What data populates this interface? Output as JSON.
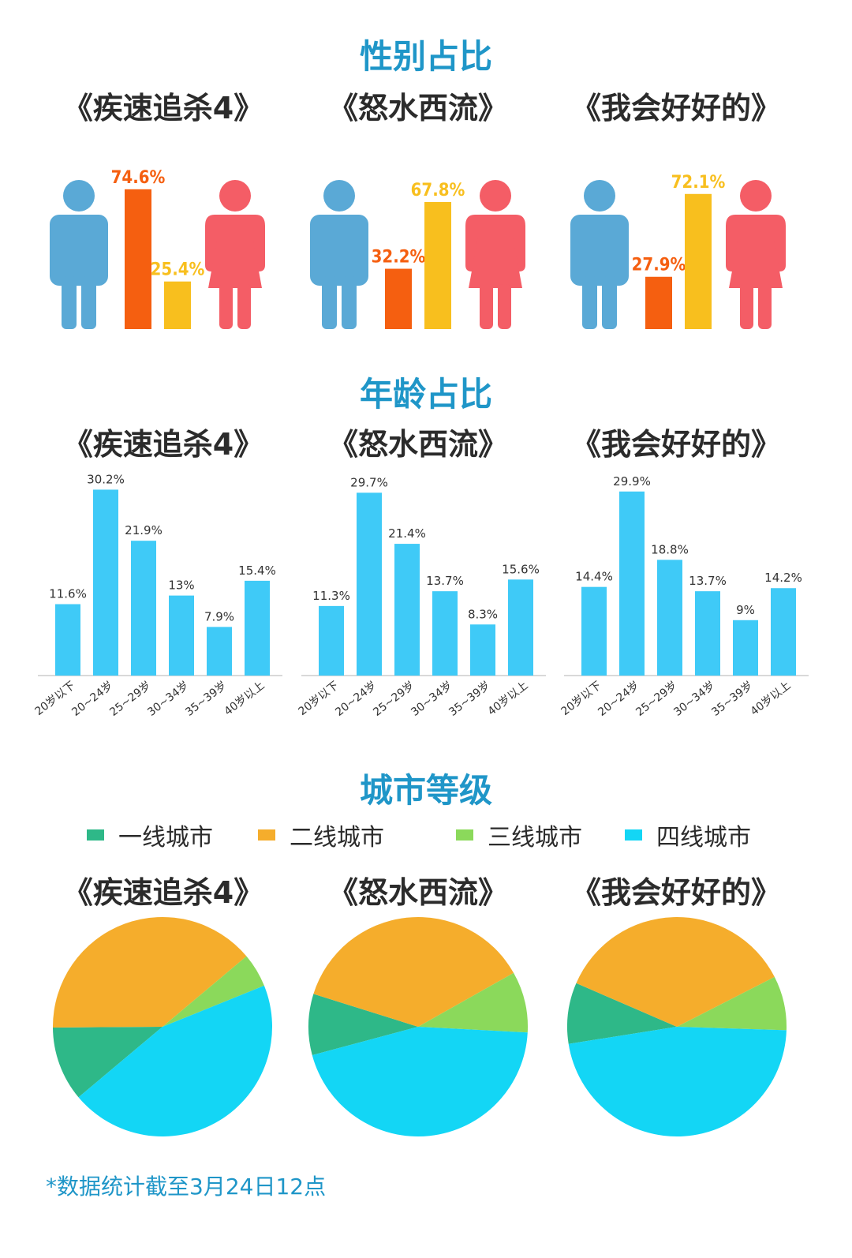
{
  "sections": {
    "gender_title": "性别占比",
    "age_title": "年龄占比",
    "city_title": "城市等级"
  },
  "films": [
    "《疾速追杀4》",
    "《怒水西流》",
    "《我会好好的》"
  ],
  "legend": {
    "items": [
      {
        "label": "一线城市",
        "color": "#2eb888"
      },
      {
        "label": "二线城市",
        "color": "#f5ad2c"
      },
      {
        "label": "三线城市",
        "color": "#8bd95b"
      },
      {
        "label": "四线城市",
        "color": "#13d6f5"
      }
    ]
  },
  "footnote": "*数据统计截至3月24日12点",
  "colors": {
    "title": "#1f96c8",
    "male_icon": "#5aa9d6",
    "female_icon": "#f45d66",
    "male_bar": "#f55f10",
    "female_bar": "#f8bf1e",
    "age_bar": "#3fcaf7"
  },
  "icons": [
    "male-person-icon",
    "female-person-icon"
  ],
  "chart_data": [
    {
      "type": "bar",
      "title": "性别占比",
      "categories": [
        "《疾速追杀4》",
        "《怒水西流》",
        "《我会好好的》"
      ],
      "series": [
        {
          "name": "男",
          "values": [
            74.6,
            32.2,
            27.9
          ],
          "labels": [
            "74.6%",
            "32.2%",
            "27.9%"
          ]
        },
        {
          "name": "女",
          "values": [
            25.4,
            67.8,
            72.1
          ],
          "labels": [
            "25.4%",
            "67.8%",
            "72.1%"
          ]
        }
      ]
    },
    {
      "type": "bar",
      "title": "年龄占比",
      "categories": [
        "20岁以下",
        "20~24岁",
        "25~29岁",
        "30~34岁",
        "35~39岁",
        "40岁以上"
      ],
      "series": [
        {
          "name": "《疾速追杀4》",
          "values": [
            11.6,
            30.2,
            21.9,
            13,
            7.9,
            15.4
          ],
          "labels": [
            "11.6%",
            "30.2%",
            "21.9%",
            "13%",
            "7.9%",
            "15.4%"
          ]
        },
        {
          "name": "《怒水西流》",
          "values": [
            11.3,
            29.7,
            21.4,
            13.7,
            8.3,
            15.6
          ],
          "labels": [
            "11.3%",
            "29.7%",
            "21.4%",
            "13.7%",
            "8.3%",
            "15.6%"
          ]
        },
        {
          "name": "《我会好好的》",
          "values": [
            14.4,
            29.9,
            18.8,
            13.7,
            9,
            14.2
          ],
          "labels": [
            "14.4%",
            "29.9%",
            "18.8%",
            "13.7%",
            "9%",
            "14.2%"
          ]
        }
      ]
    },
    {
      "type": "pie",
      "title": "城市等级",
      "categories": [
        "一线城市",
        "二线城市",
        "三线城市",
        "四线城市"
      ],
      "series": [
        {
          "name": "《疾速追杀4》",
          "values": [
            11,
            39,
            5,
            45
          ]
        },
        {
          "name": "《怒水西流》",
          "values": [
            9,
            37,
            9,
            45
          ]
        },
        {
          "name": "《我会好好的》",
          "values": [
            9,
            36,
            8,
            47
          ]
        }
      ]
    }
  ]
}
